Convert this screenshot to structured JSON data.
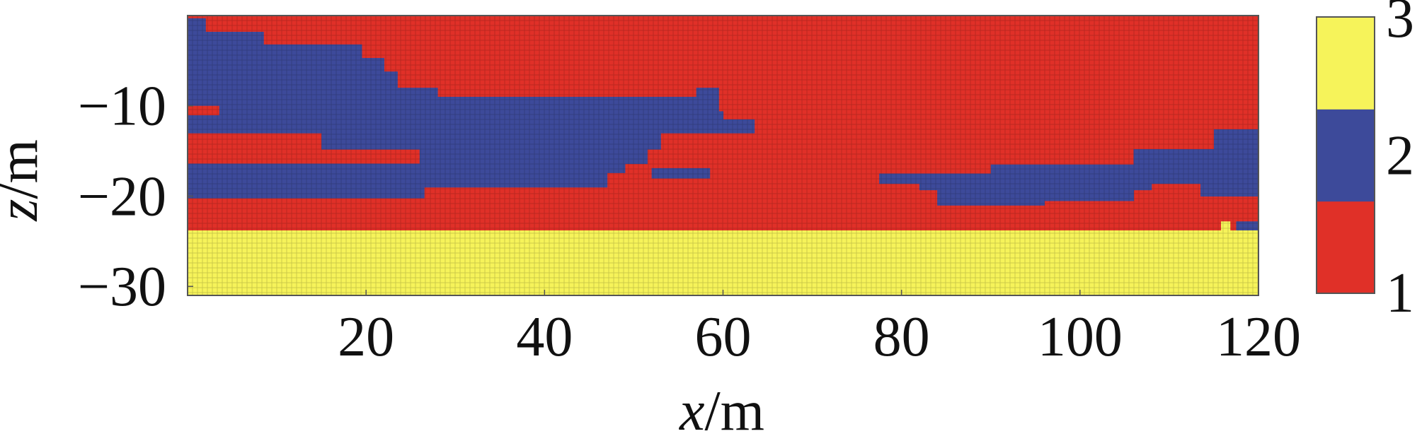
{
  "chart_data": {
    "type": "heatmap",
    "title": "",
    "xlabel": {
      "var": "x",
      "unit": "/m"
    },
    "ylabel": {
      "var": "z",
      "unit": "/m"
    },
    "xlim": [
      0,
      120
    ],
    "ylim": [
      -31,
      0
    ],
    "x_ticks": [
      "20",
      "40",
      "60",
      "80",
      "100",
      "120"
    ],
    "x_tick_values": [
      20,
      40,
      60,
      80,
      100,
      120
    ],
    "y_ticks": [
      "−10",
      "−20",
      "−30"
    ],
    "y_tick_values": [
      -10,
      -20,
      -30
    ],
    "grid": false,
    "colorbar": {
      "placement": "right",
      "levels": [
        {
          "value": 1,
          "label": "1",
          "color": "#e03028"
        },
        {
          "value": 2,
          "label": "2",
          "color": "#3d4a9a"
        },
        {
          "value": 3,
          "label": "3",
          "color": "#f6f35a"
        }
      ]
    },
    "background_value": 1,
    "regions": [
      {
        "value": 2,
        "z_top": -0.3,
        "z_bottom": -1.8,
        "x_from": 0.0,
        "x_to": 2.0
      },
      {
        "value": 2,
        "z_top": -1.8,
        "z_bottom": -3.2,
        "x_from": 0.0,
        "x_to": 8.5
      },
      {
        "value": 2,
        "z_top": -3.2,
        "z_bottom": -4.7,
        "x_from": 0.0,
        "x_to": 19.5
      },
      {
        "value": 2,
        "z_top": -4.7,
        "z_bottom": -6.2,
        "x_from": 0.0,
        "x_to": 22.0
      },
      {
        "value": 2,
        "z_top": -6.2,
        "z_bottom": -8.0,
        "x_from": 0.0,
        "x_to": 23.5
      },
      {
        "value": 2,
        "z_top": -8.0,
        "z_bottom": -9.0,
        "x_from": 0.0,
        "x_to": 28.0
      },
      {
        "value": 2,
        "z_top": -8.0,
        "z_bottom": -9.0,
        "x_from": 57.0,
        "x_to": 59.5
      },
      {
        "value": 2,
        "z_top": -9.0,
        "z_bottom": -10.6,
        "x_from": 0.0,
        "x_to": 59.5
      },
      {
        "value": 2,
        "z_top": -10.6,
        "z_bottom": -11.5,
        "x_from": 0.0,
        "x_to": 60.0
      },
      {
        "value": 2,
        "z_top": -11.5,
        "z_bottom": -13.0,
        "x_from": 0.0,
        "x_to": 63.5
      },
      {
        "value": 2,
        "z_top": -13.0,
        "z_bottom": -14.8,
        "x_from": 15.0,
        "x_to": 53.0
      },
      {
        "value": 2,
        "z_top": -14.8,
        "z_bottom": -16.4,
        "x_from": 26.0,
        "x_to": 51.5
      },
      {
        "value": 2,
        "z_top": -16.4,
        "z_bottom": -17.4,
        "x_from": 0.0,
        "x_to": 49.0
      },
      {
        "value": 2,
        "z_top": -17.4,
        "z_bottom": -19.0,
        "x_from": 0.0,
        "x_to": 47.0
      },
      {
        "value": 2,
        "z_top": -19.0,
        "z_bottom": -20.2,
        "x_from": 0.0,
        "x_to": 26.5
      },
      {
        "value": 2,
        "z_top": -16.9,
        "z_bottom": -18.0,
        "x_from": 52.0,
        "x_to": 58.5
      },
      {
        "value": 2,
        "z_top": -12.6,
        "z_bottom": -14.8,
        "x_from": 115.0,
        "x_to": 120.0
      },
      {
        "value": 2,
        "z_top": -14.8,
        "z_bottom": -16.5,
        "x_from": 106.0,
        "x_to": 120.0
      },
      {
        "value": 2,
        "z_top": -16.5,
        "z_bottom": -17.5,
        "x_from": 90.0,
        "x_to": 120.0
      },
      {
        "value": 2,
        "z_top": -17.5,
        "z_bottom": -18.6,
        "x_from": 77.5,
        "x_to": 120.0
      },
      {
        "value": 2,
        "z_top": -18.6,
        "z_bottom": -19.3,
        "x_from": 82.0,
        "x_to": 108.0
      },
      {
        "value": 2,
        "z_top": -18.6,
        "z_bottom": -20.0,
        "x_from": 113.5,
        "x_to": 120.0
      },
      {
        "value": 2,
        "z_top": -19.3,
        "z_bottom": -20.5,
        "x_from": 84.0,
        "x_to": 106.0
      },
      {
        "value": 2,
        "z_top": -20.5,
        "z_bottom": -21.0,
        "x_from": 84.0,
        "x_to": 96.0
      },
      {
        "value": 2,
        "z_top": -22.8,
        "z_bottom": -23.8,
        "x_from": 117.5,
        "x_to": 120.0
      },
      {
        "value": 1,
        "z_top": -10.0,
        "z_bottom": -11.0,
        "x_from": 0.0,
        "x_to": 3.5
      },
      {
        "value": 3,
        "z_top": -23.8,
        "z_bottom": -31.0,
        "x_from": 0.0,
        "x_to": 120.0
      },
      {
        "value": 3,
        "z_top": -22.8,
        "z_bottom": -23.8,
        "x_from": 115.8,
        "x_to": 116.8
      }
    ]
  }
}
